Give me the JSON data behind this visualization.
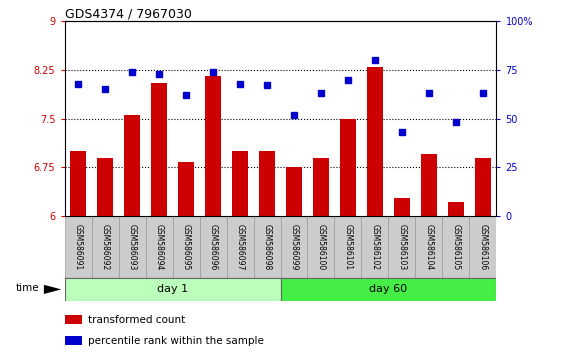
{
  "title": "GDS4374 / 7967030",
  "samples": [
    "GSM586091",
    "GSM586092",
    "GSM586093",
    "GSM586094",
    "GSM586095",
    "GSM586096",
    "GSM586097",
    "GSM586098",
    "GSM586099",
    "GSM586100",
    "GSM586101",
    "GSM586102",
    "GSM586103",
    "GSM586104",
    "GSM586105",
    "GSM586106"
  ],
  "bar_values": [
    7.0,
    6.9,
    7.55,
    8.05,
    6.83,
    8.15,
    7.0,
    7.0,
    6.75,
    6.9,
    7.5,
    8.3,
    6.27,
    6.95,
    6.22,
    6.9
  ],
  "dot_values": [
    68,
    65,
    74,
    73,
    62,
    74,
    68,
    67,
    52,
    63,
    70,
    80,
    43,
    63,
    48,
    63
  ],
  "bar_color": "#cc0000",
  "dot_color": "#0000cc",
  "ylim_left": [
    6,
    9
  ],
  "ylim_right": [
    0,
    100
  ],
  "yticks_left": [
    6,
    6.75,
    7.5,
    8.25,
    9
  ],
  "ytick_labels_left": [
    "6",
    "6.75",
    "7.5",
    "8.25",
    "9"
  ],
  "yticks_right": [
    0,
    25,
    50,
    75,
    100
  ],
  "ytick_labels_right": [
    "0",
    "25",
    "50",
    "75",
    "100%"
  ],
  "hlines": [
    6.75,
    7.5,
    8.25
  ],
  "day1_samples": 8,
  "day60_samples": 8,
  "day1_label": "day 1",
  "day60_label": "day 60",
  "time_label": "time",
  "legend_bar_label": "transformed count",
  "legend_dot_label": "percentile rank within the sample",
  "day1_color": "#bbffbb",
  "day60_color": "#44ee44",
  "plot_bg_color": "#ffffff",
  "label_box_color": "#cccccc",
  "label_box_edge": "#999999"
}
